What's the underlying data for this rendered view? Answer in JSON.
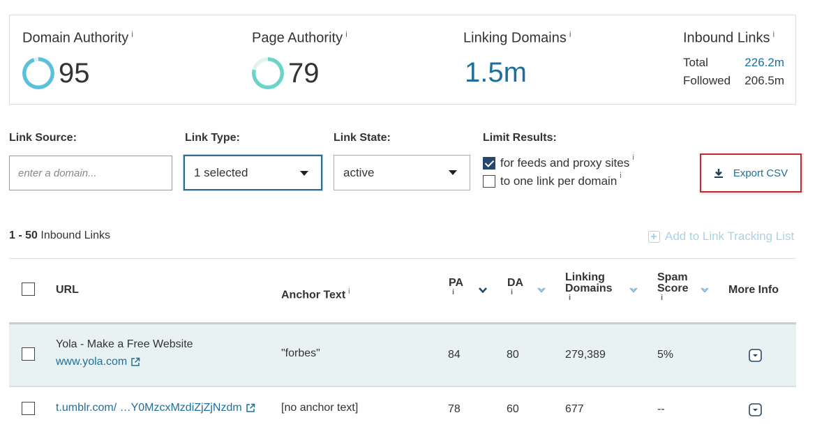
{
  "metrics": {
    "domain_authority": {
      "title": "Domain Authority",
      "info": "i",
      "value": "95"
    },
    "page_authority": {
      "title": "Page Authority",
      "info": "i",
      "value": "79"
    },
    "linking_domains": {
      "title": "Linking Domains",
      "info": "i",
      "value": "1.5m"
    },
    "inbound_links": {
      "title": "Inbound Links",
      "info": "i",
      "total_label": "Total",
      "total_value": "226.2m",
      "followed_label": "Followed",
      "followed_value": "206.5m"
    }
  },
  "filters": {
    "link_source": {
      "label": "Link Source:",
      "placeholder": "enter a domain..."
    },
    "link_type": {
      "label": "Link Type:",
      "value": "1 selected"
    },
    "link_state": {
      "label": "Link State:",
      "value": "active"
    },
    "limit_results": {
      "label": "Limit Results:",
      "option1": {
        "label": "for feeds and proxy sites",
        "info": "i",
        "checked": true
      },
      "option2": {
        "label": "to one link per domain",
        "info": "i",
        "checked": false
      }
    },
    "export_label": "Export CSV"
  },
  "results": {
    "range": "1 - 50",
    "label": "Inbound Links",
    "add_tracking_label": "Add to Link Tracking List"
  },
  "table": {
    "headers": {
      "url": "URL",
      "anchor": "Anchor Text",
      "anchor_info": "i",
      "pa": "PA",
      "pa_info": "i",
      "da": "DA",
      "da_info": "i",
      "ld_line1": "Linking",
      "ld_line2": "Domains",
      "ld_info": "i",
      "spam_line1": "Spam",
      "spam_line2": "Score",
      "spam_info": "i",
      "more": "More Info"
    },
    "rows": [
      {
        "title": "Yola - Make a Free Website",
        "url": "www.yola.com",
        "anchor": "\"forbes\"",
        "pa": "84",
        "da": "80",
        "linking_domains": "279,389",
        "spam": "5%"
      },
      {
        "url": "t.umblr.com/ …Y0MzcxMzdiZjZjNzdm",
        "anchor": "[no anchor text]",
        "pa": "78",
        "da": "60",
        "linking_domains": "677",
        "spam": "--"
      }
    ]
  },
  "colors": {
    "accent_blue": "#1d6f9c",
    "export_border": "#d0222a",
    "da_ring": "#5bc0de",
    "pa_ring": "#6bd4c8"
  }
}
